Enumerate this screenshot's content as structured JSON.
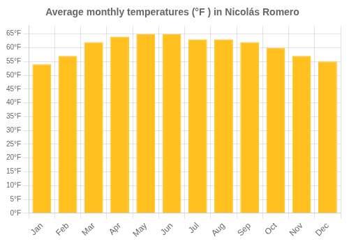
{
  "chart_data": {
    "type": "bar",
    "title": "Average monthly temperatures (°F ) in Nicolás Romero",
    "categories": [
      "Jan",
      "Feb",
      "Mar",
      "Apr",
      "May",
      "Jun",
      "Jul",
      "Aug",
      "Sep",
      "Oct",
      "Nov",
      "Dec"
    ],
    "values": [
      54,
      57,
      62,
      64,
      65,
      65,
      63,
      63,
      62,
      60,
      57,
      55
    ],
    "color": "#FFC020",
    "ylim": [
      0,
      68
    ],
    "yticks": [
      {
        "value": 0,
        "label": "0°F"
      },
      {
        "value": 5,
        "label": "5°F"
      },
      {
        "value": 10,
        "label": "10°F"
      },
      {
        "value": 15,
        "label": "15°F"
      },
      {
        "value": 20,
        "label": "20°F"
      },
      {
        "value": 25,
        "label": "25°F"
      },
      {
        "value": 30,
        "label": "30°F"
      },
      {
        "value": 35,
        "label": "35°F"
      },
      {
        "value": 40,
        "label": "40°F"
      },
      {
        "value": 45,
        "label": "45°F"
      },
      {
        "value": 50,
        "label": "50°F"
      },
      {
        "value": 55,
        "label": "55°F"
      },
      {
        "value": 60,
        "label": "60°F"
      },
      {
        "value": 65,
        "label": "65°F"
      }
    ],
    "grid": true
  }
}
